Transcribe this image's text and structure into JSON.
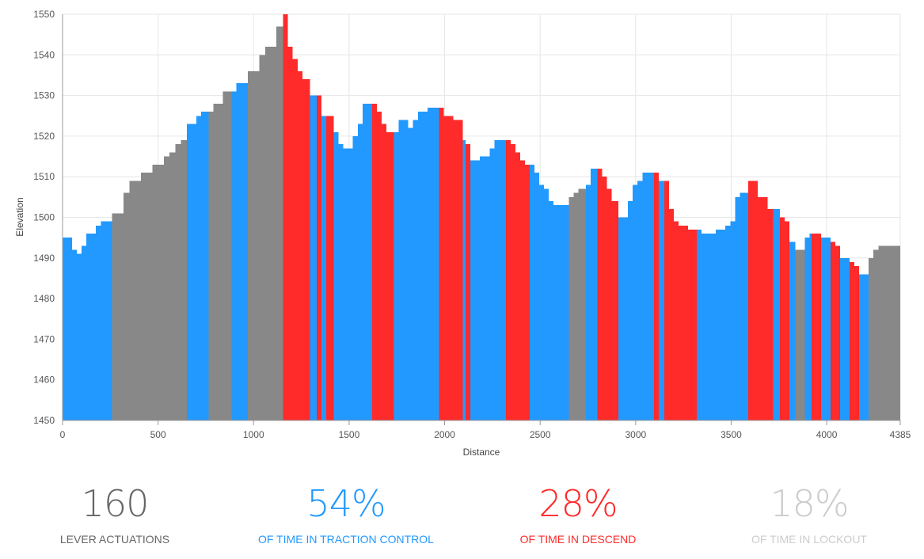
{
  "colors": {
    "traction": "#2299ff",
    "descend": "#ff2a2a",
    "lockout": "#888888",
    "grid": "#e6e6e6",
    "lever_text": "#666666",
    "lockout_text": "#cccccc"
  },
  "chart_data": {
    "type": "bar",
    "xlabel": "Distance",
    "ylabel": "Elevation",
    "xlim": [
      0,
      4385
    ],
    "ylim": [
      1450,
      1550
    ],
    "x_ticks": [
      0,
      500,
      1000,
      1500,
      2000,
      2500,
      3000,
      3500,
      4000,
      4385
    ],
    "y_ticks": [
      1450,
      1460,
      1470,
      1480,
      1490,
      1500,
      1510,
      1520,
      1530,
      1540,
      1550
    ],
    "grid": true,
    "segment_mode_legend": {
      "T": "traction control",
      "D": "descend",
      "L": "lockout"
    },
    "segments": [
      {
        "mode": "T",
        "x": [
          0,
          25,
          50,
          75,
          100,
          125,
          150,
          175,
          200,
          225,
          250
        ],
        "y": [
          1495,
          1495,
          1492,
          1491,
          1493,
          1496,
          1496,
          1498,
          1499,
          1499,
          1499
        ]
      },
      {
        "mode": "L",
        "x": [
          260,
          290,
          320,
          350,
          380,
          410,
          440,
          470,
          500,
          530,
          560,
          590,
          620
        ],
        "y": [
          1501,
          1501,
          1506,
          1509,
          1509,
          1511,
          1511,
          1513,
          1513,
          1515,
          1516,
          1518,
          1519
        ]
      },
      {
        "mode": "T",
        "x": [
          650,
          675,
          700,
          725,
          750
        ],
        "y": [
          1523,
          1523,
          1525,
          1526,
          1526
        ]
      },
      {
        "mode": "L",
        "x": [
          765,
          790,
          815,
          840,
          865
        ],
        "y": [
          1526,
          1528,
          1528,
          1531,
          1531
        ]
      },
      {
        "mode": "T",
        "x": [
          885,
          910,
          935,
          955
        ],
        "y": [
          1531,
          1533,
          1533,
          1533
        ]
      },
      {
        "mode": "L",
        "x": [
          970,
          1000,
          1030,
          1060,
          1090,
          1120,
          1140
        ],
        "y": [
          1536,
          1536,
          1540,
          1542,
          1542,
          1547,
          1547
        ]
      },
      {
        "mode": "D",
        "x": [
          1155,
          1180,
          1205,
          1230,
          1255
        ],
        "y": [
          1550,
          1542,
          1539,
          1536,
          1534
        ]
      },
      {
        "mode": "T",
        "x": [
          1295,
          1320
        ],
        "y": [
          1530,
          1530
        ]
      },
      {
        "mode": "D",
        "x": [
          1330
        ],
        "y": [
          1530
        ]
      },
      {
        "mode": "T",
        "x": [
          1355,
          1370
        ],
        "y": [
          1525,
          1525
        ]
      },
      {
        "mode": "D",
        "x": [
          1380
        ],
        "y": [
          1525
        ]
      },
      {
        "mode": "T",
        "x": [
          1420,
          1445,
          1470,
          1495,
          1520,
          1545,
          1570,
          1595
        ],
        "y": [
          1521,
          1518,
          1517,
          1517,
          1520,
          1523,
          1528,
          1528
        ]
      },
      {
        "mode": "D",
        "x": [
          1620,
          1645,
          1670,
          1695,
          1720
        ],
        "y": [
          1528,
          1526,
          1523,
          1521,
          1521
        ]
      },
      {
        "mode": "T",
        "x": [
          1735,
          1760,
          1785,
          1810,
          1835,
          1860,
          1885,
          1910,
          1935,
          1960
        ],
        "y": [
          1521,
          1524,
          1524,
          1522,
          1524,
          1526,
          1526,
          1527,
          1527,
          1527
        ]
      },
      {
        "mode": "D",
        "x": [
          1970,
          1995,
          2020,
          2045,
          2070
        ],
        "y": [
          1527,
          1525,
          1525,
          1524,
          1524
        ]
      },
      {
        "mode": "T",
        "x": [
          2095
        ],
        "y": [
          1519
        ]
      },
      {
        "mode": "D",
        "x": [
          2110
        ],
        "y": [
          1518
        ]
      },
      {
        "mode": "T",
        "x": [
          2135,
          2160,
          2185,
          2210,
          2235,
          2260,
          2285,
          2310
        ],
        "y": [
          1514,
          1514,
          1515,
          1515,
          1517,
          1519,
          1519,
          1519
        ]
      },
      {
        "mode": "D",
        "x": [
          2320,
          2345,
          2370,
          2395,
          2420
        ],
        "y": [
          1519,
          1518,
          1516,
          1514,
          1513
        ]
      },
      {
        "mode": "T",
        "x": [
          2445,
          2470,
          2495,
          2520,
          2545,
          2570,
          2595,
          2620
        ],
        "y": [
          1513,
          1511,
          1508,
          1507,
          1504,
          1503,
          1503,
          1503
        ]
      },
      {
        "mode": "L",
        "x": [
          2650,
          2675,
          2700,
          2725
        ],
        "y": [
          1505,
          1506,
          1507,
          1507
        ]
      },
      {
        "mode": "T",
        "x": [
          2740,
          2765,
          2790
        ],
        "y": [
          1508,
          1512,
          1512
        ]
      },
      {
        "mode": "D",
        "x": [
          2800,
          2825,
          2850,
          2875
        ],
        "y": [
          1512,
          1510,
          1507,
          1504
        ]
      },
      {
        "mode": "T",
        "x": [
          2910,
          2935,
          2960,
          2985,
          3010,
          3035,
          3060,
          3085
        ],
        "y": [
          1500,
          1500,
          1504,
          1508,
          1509,
          1511,
          1511,
          1511
        ]
      },
      {
        "mode": "D",
        "x": [
          3095
        ],
        "y": [
          1511
        ]
      },
      {
        "mode": "T",
        "x": [
          3120,
          3140
        ],
        "y": [
          1509,
          1509
        ]
      },
      {
        "mode": "D",
        "x": [
          3150,
          3175,
          3200,
          3225,
          3250,
          3275,
          3300
        ],
        "y": [
          1509,
          1502,
          1499,
          1498,
          1498,
          1497,
          1497
        ]
      },
      {
        "mode": "T",
        "x": [
          3320,
          3345,
          3370,
          3395,
          3420,
          3445,
          3470,
          3495,
          3520,
          3545,
          3570
        ],
        "y": [
          1497,
          1496,
          1496,
          1496,
          1497,
          1497,
          1498,
          1499,
          1505,
          1506,
          1506
        ]
      },
      {
        "mode": "D",
        "x": [
          3590,
          3615,
          3640,
          3665,
          3690
        ],
        "y": [
          1509,
          1509,
          1505,
          1505,
          1502
        ]
      },
      {
        "mode": "T",
        "x": [
          3720,
          3745
        ],
        "y": [
          1502,
          1502
        ]
      },
      {
        "mode": "D",
        "x": [
          3755,
          3780
        ],
        "y": [
          1500,
          1499
        ]
      },
      {
        "mode": "T",
        "x": [
          3805
        ],
        "y": [
          1494
        ]
      },
      {
        "mode": "L",
        "x": [
          3835,
          3860
        ],
        "y": [
          1492,
          1492
        ]
      },
      {
        "mode": "T",
        "x": [
          3885,
          3910
        ],
        "y": [
          1495,
          1496
        ]
      },
      {
        "mode": "D",
        "x": [
          3920,
          3945
        ],
        "y": [
          1496,
          1496
        ]
      },
      {
        "mode": "T",
        "x": [
          3970,
          3995
        ],
        "y": [
          1495,
          1495
        ]
      },
      {
        "mode": "D",
        "x": [
          4020,
          4045
        ],
        "y": [
          1494,
          1493
        ]
      },
      {
        "mode": "T",
        "x": [
          4070,
          4095
        ],
        "y": [
          1490,
          1490
        ]
      },
      {
        "mode": "D",
        "x": [
          4120,
          4145
        ],
        "y": [
          1489,
          1488
        ]
      },
      {
        "mode": "T",
        "x": [
          4170,
          4195
        ],
        "y": [
          1486,
          1486
        ]
      },
      {
        "mode": "L",
        "x": [
          4220,
          4245,
          4270,
          4295,
          4320,
          4345
        ],
        "y": [
          1490,
          1492,
          1493,
          1493,
          1493,
          1493
        ]
      }
    ]
  },
  "stats": [
    {
      "value": "160",
      "label": "LEVER ACTUATIONS"
    },
    {
      "value": "54%",
      "label": "OF TIME IN TRACTION CONTROL"
    },
    {
      "value": "28%",
      "label": "OF TIME IN DESCEND"
    },
    {
      "value": "18%",
      "label": "OF TIME IN LOCKOUT"
    }
  ]
}
